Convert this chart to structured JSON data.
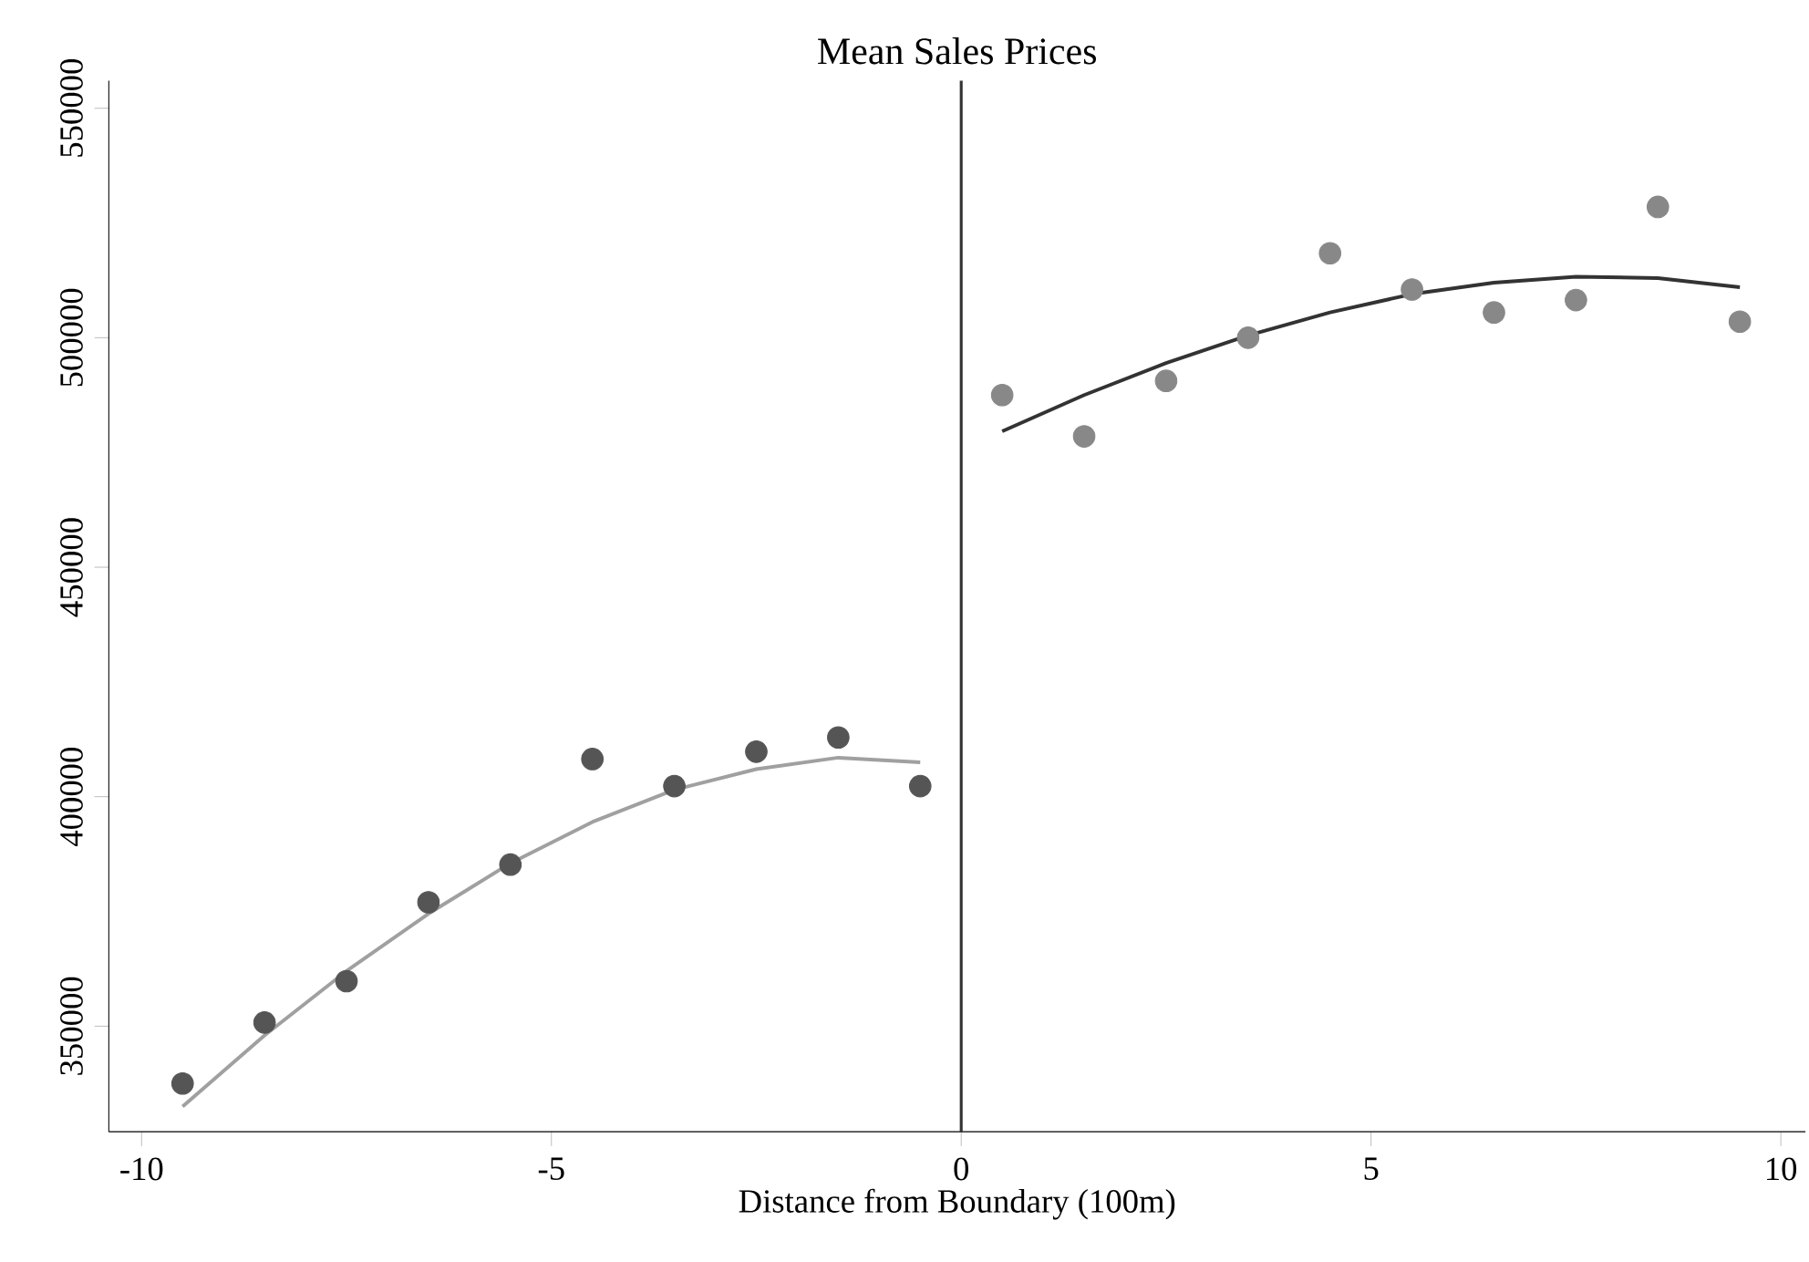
{
  "chart_data": {
    "type": "scatter",
    "title": "Mean Sales Prices",
    "xlabel": "Distance from Boundary (100m)",
    "xlim": [
      -10.4,
      10.3
    ],
    "ylim": [
      327000,
      556000
    ],
    "xticks": [
      -10,
      -5,
      0,
      5,
      10
    ],
    "yticks": [
      350000,
      400000,
      450000,
      500000,
      550000
    ],
    "series": [
      {
        "marker": "circle",
        "color": "#555555",
        "x": [
          -9.5,
          -8.5,
          -7.5,
          -6.5,
          -5.5,
          -4.5,
          -3.5,
          -2.5,
          -1.5,
          -0.5
        ],
        "values": [
          337500,
          350800,
          359800,
          377000,
          385200,
          408200,
          402300,
          409800,
          412900,
          402300
        ]
      },
      {
        "marker": "circle",
        "color": "#888888",
        "x": [
          0.5,
          1.5,
          2.5,
          3.5,
          4.5,
          5.5,
          6.5,
          7.5,
          8.5,
          9.5
        ],
        "values": [
          487500,
          478500,
          490600,
          500000,
          518400,
          510500,
          505500,
          508200,
          528500,
          503500
        ]
      },
      {
        "type": "line",
        "marker": "none",
        "color": "#a0a0a0",
        "x": [
          -9.5,
          -8.5,
          -7.5,
          -6.5,
          -5.5,
          -4.5,
          -3.5,
          -2.5,
          -1.5,
          -0.5
        ],
        "values": [
          332500,
          348000,
          362000,
          374500,
          385500,
          394500,
          401500,
          406000,
          408500,
          407500
        ]
      },
      {
        "type": "line",
        "marker": "none",
        "color": "#333333",
        "x": [
          0.5,
          1.5,
          2.5,
          3.5,
          4.5,
          5.5,
          6.5,
          7.5,
          8.5,
          9.5
        ],
        "values": [
          479600,
          487500,
          494500,
          500500,
          505500,
          509500,
          512000,
          513300,
          513000,
          511000
        ]
      }
    ],
    "ref_lines": [
      {
        "axis": "x",
        "value": 0,
        "color": "#333333",
        "line_style": "solid"
      }
    ]
  }
}
